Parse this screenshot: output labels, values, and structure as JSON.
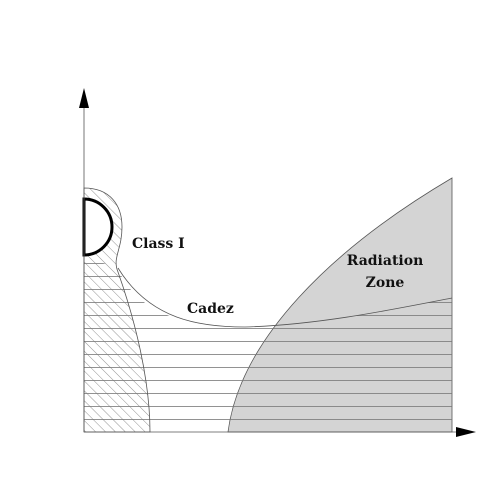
{
  "regions": {
    "class_i": "Class I",
    "cadez": "Cadez",
    "radiation_zone": {
      "line1": "Radiation",
      "line2": "Zone"
    }
  }
}
